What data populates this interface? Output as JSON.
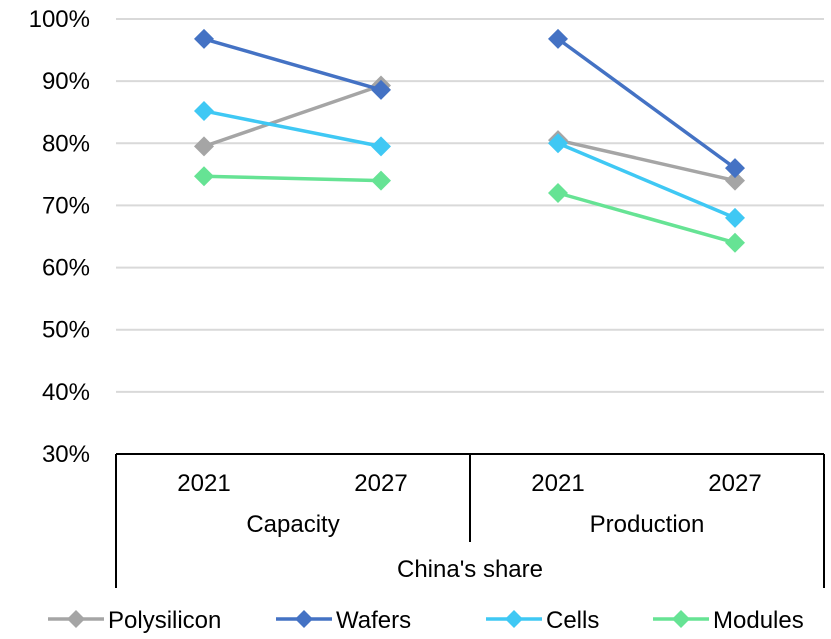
{
  "chart_data": {
    "type": "line",
    "y_ticks": [
      "100%",
      "90%",
      "80%",
      "70%",
      "60%",
      "50%",
      "40%",
      "30%"
    ],
    "ylim": [
      0.3,
      1.0
    ],
    "grid": true,
    "x_level1": [
      "2021",
      "2027",
      "2021",
      "2027"
    ],
    "x_level2": [
      "Capacity",
      "Production"
    ],
    "x_level3": "China's share",
    "groups": [
      {
        "name": "Capacity",
        "categories": [
          "2021",
          "2027"
        ]
      },
      {
        "name": "Production",
        "categories": [
          "2021",
          "2027"
        ]
      }
    ],
    "series": [
      {
        "name": "Polysilicon",
        "color": "#A5A5A5",
        "capacity": [
          0.795,
          0.893
        ],
        "production": [
          0.805,
          0.74
        ]
      },
      {
        "name": "Wafers",
        "color": "#4472C4",
        "capacity": [
          0.968,
          0.886
        ],
        "production": [
          0.968,
          0.76
        ]
      },
      {
        "name": "Cells",
        "color": "#3FC8F4",
        "capacity": [
          0.852,
          0.795
        ],
        "production": [
          0.8,
          0.68
        ]
      },
      {
        "name": "Modules",
        "color": "#66E394",
        "capacity": [
          0.747,
          0.74
        ],
        "production": [
          0.72,
          0.64
        ]
      }
    ],
    "legend_position": "bottom"
  }
}
